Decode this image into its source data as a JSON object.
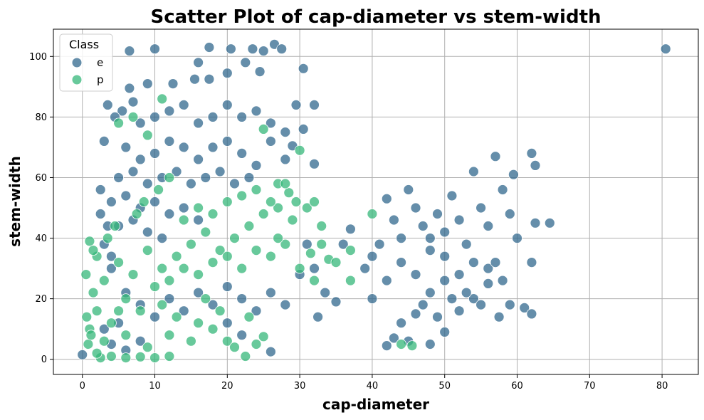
{
  "chart_data": {
    "type": "scatter",
    "title": "Scatter Plot of cap-diameter vs stem-width",
    "xlabel": "cap-diameter",
    "ylabel": "stem-width",
    "xlim": [
      -4,
      85
    ],
    "ylim": [
      -5,
      109
    ],
    "xticks": [
      0,
      10,
      20,
      30,
      40,
      50,
      60,
      70,
      80
    ],
    "yticks": [
      0,
      20,
      40,
      60,
      80,
      100
    ],
    "grid": true,
    "legend": {
      "title": "Class",
      "placement": "top-left"
    },
    "series": [
      {
        "name": "e",
        "color": "#31688e",
        "points": [
          [
            0.0,
            1.5
          ],
          [
            80.5,
            102.5
          ],
          [
            6.5,
            101.8
          ],
          [
            10.0,
            102.5
          ],
          [
            16.0,
            98.0
          ],
          [
            17.5,
            103.0
          ],
          [
            20.5,
            102.5
          ],
          [
            23.5,
            102.5
          ],
          [
            25.0,
            101.8
          ],
          [
            26.5,
            104.0
          ],
          [
            27.5,
            102.5
          ],
          [
            30.5,
            96.0
          ],
          [
            9.0,
            91.0
          ],
          [
            15.5,
            92.5
          ],
          [
            17.5,
            92.5
          ],
          [
            20.0,
            94.5
          ],
          [
            22.5,
            98.0
          ],
          [
            24.5,
            95.0
          ],
          [
            12.5,
            91.0
          ],
          [
            6.5,
            89.5
          ],
          [
            3.5,
            84.0
          ],
          [
            5.5,
            82.0
          ],
          [
            29.5,
            84.0
          ],
          [
            32.0,
            84.0
          ],
          [
            30.5,
            76.0
          ],
          [
            29.0,
            70.5
          ],
          [
            32.0,
            64.5
          ],
          [
            4.5,
            80.0
          ],
          [
            3.0,
            72.0
          ],
          [
            2.5,
            56.0
          ],
          [
            2.5,
            48.0
          ],
          [
            3.5,
            44.0
          ],
          [
            3.0,
            38.0
          ],
          [
            4.0,
            34.0
          ],
          [
            7.0,
            85.0
          ],
          [
            8.0,
            78.0
          ],
          [
            10.0,
            80.0
          ],
          [
            12.0,
            82.0
          ],
          [
            14.0,
            84.0
          ],
          [
            16.0,
            78.0
          ],
          [
            18.0,
            80.0
          ],
          [
            20.0,
            84.0
          ],
          [
            22.0,
            80.0
          ],
          [
            24.0,
            82.0
          ],
          [
            26.0,
            78.0
          ],
          [
            28.0,
            75.0
          ],
          [
            6.0,
            70.0
          ],
          [
            8.0,
            66.0
          ],
          [
            10.0,
            68.0
          ],
          [
            12.0,
            72.0
          ],
          [
            14.0,
            70.0
          ],
          [
            16.0,
            66.0
          ],
          [
            18.0,
            70.0
          ],
          [
            20.0,
            72.0
          ],
          [
            22.0,
            68.0
          ],
          [
            24.0,
            64.0
          ],
          [
            26.0,
            72.0
          ],
          [
            28.0,
            66.0
          ],
          [
            5.0,
            60.0
          ],
          [
            7.0,
            62.0
          ],
          [
            9.0,
            58.0
          ],
          [
            11.0,
            60.0
          ],
          [
            13.0,
            62.0
          ],
          [
            15.0,
            58.0
          ],
          [
            17.0,
            60.0
          ],
          [
            19.0,
            62.0
          ],
          [
            21.0,
            58.0
          ],
          [
            23.0,
            60.0
          ],
          [
            4.0,
            52.0
          ],
          [
            6.0,
            54.0
          ],
          [
            8.0,
            50.0
          ],
          [
            10.0,
            52.0
          ],
          [
            12.0,
            48.0
          ],
          [
            14.0,
            50.0
          ],
          [
            16.0,
            46.0
          ],
          [
            5.0,
            44.0
          ],
          [
            7.0,
            46.0
          ],
          [
            9.0,
            42.0
          ],
          [
            11.0,
            40.0
          ],
          [
            4.0,
            30.0
          ],
          [
            6.0,
            22.0
          ],
          [
            8.0,
            18.0
          ],
          [
            10.0,
            14.0
          ],
          [
            12.0,
            20.0
          ],
          [
            14.0,
            16.0
          ],
          [
            16.0,
            22.0
          ],
          [
            18.0,
            18.0
          ],
          [
            20.0,
            24.0
          ],
          [
            22.0,
            20.0
          ],
          [
            24.0,
            16.0
          ],
          [
            26.0,
            22.0
          ],
          [
            28.0,
            18.0
          ],
          [
            30.0,
            28.0
          ],
          [
            31.0,
            38.0
          ],
          [
            32.0,
            30.0
          ],
          [
            33.5,
            22.0
          ],
          [
            35.0,
            19.0
          ],
          [
            36.0,
            38.0
          ],
          [
            37.0,
            43.0
          ],
          [
            32.5,
            14.0
          ],
          [
            26.0,
            2.5
          ],
          [
            4.0,
            5.0
          ],
          [
            6.0,
            3.0
          ],
          [
            8.0,
            6.0
          ],
          [
            3.0,
            10.0
          ],
          [
            5.0,
            12.0
          ],
          [
            20.0,
            12.0
          ],
          [
            22.0,
            8.0
          ],
          [
            40.0,
            20.0
          ],
          [
            39.0,
            30.0
          ],
          [
            41.0,
            38.0
          ],
          [
            42.0,
            53.0
          ],
          [
            43.0,
            46.0
          ],
          [
            44.0,
            40.0
          ],
          [
            45.0,
            56.0
          ],
          [
            46.0,
            50.0
          ],
          [
            47.0,
            44.0
          ],
          [
            48.0,
            36.0
          ],
          [
            49.0,
            48.0
          ],
          [
            50.0,
            42.0
          ],
          [
            51.0,
            54.0
          ],
          [
            52.0,
            46.0
          ],
          [
            53.0,
            38.0
          ],
          [
            54.0,
            62.0
          ],
          [
            55.0,
            50.0
          ],
          [
            56.0,
            44.0
          ],
          [
            57.0,
            67.0
          ],
          [
            58.0,
            56.0
          ],
          [
            59.0,
            48.0
          ],
          [
            60.0,
            40.0
          ],
          [
            62.0,
            68.0
          ],
          [
            62.5,
            64.0
          ],
          [
            64.5,
            45.0
          ],
          [
            62.5,
            45.0
          ],
          [
            62.0,
            32.0
          ],
          [
            59.5,
            61.0
          ],
          [
            61.0,
            17.0
          ],
          [
            62.0,
            15.0
          ],
          [
            59.0,
            18.0
          ],
          [
            57.5,
            14.0
          ],
          [
            56.0,
            25.0
          ],
          [
            54.0,
            20.0
          ],
          [
            52.0,
            16.0
          ],
          [
            50.0,
            9.0
          ],
          [
            48.0,
            5.0
          ],
          [
            45.0,
            6.0
          ],
          [
            43.0,
            7.0
          ],
          [
            42.0,
            4.5
          ],
          [
            44.0,
            12.0
          ],
          [
            46.0,
            15.0
          ],
          [
            48.0,
            22.0
          ],
          [
            50.0,
            26.0
          ],
          [
            52.0,
            28.0
          ],
          [
            54.0,
            32.0
          ],
          [
            56.0,
            30.0
          ],
          [
            58.0,
            26.0
          ],
          [
            46.0,
            28.0
          ],
          [
            44.0,
            32.0
          ],
          [
            42.0,
            26.0
          ],
          [
            40.0,
            34.0
          ],
          [
            47.0,
            18.0
          ],
          [
            49.0,
            14.0
          ],
          [
            51.0,
            20.0
          ],
          [
            53.0,
            22.0
          ],
          [
            55.0,
            18.0
          ],
          [
            57.0,
            32.0
          ],
          [
            50.0,
            34.0
          ],
          [
            48.0,
            40.0
          ]
        ]
      },
      {
        "name": "p",
        "color": "#35b779",
        "points": [
          [
            11.0,
            86.0
          ],
          [
            7.0,
            80.0
          ],
          [
            5.0,
            78.0
          ],
          [
            9.0,
            74.0
          ],
          [
            12.0,
            60.0
          ],
          [
            30.0,
            69.0
          ],
          [
            27.0,
            58.0
          ],
          [
            28.5,
            55.0
          ],
          [
            29.5,
            52.0
          ],
          [
            31.0,
            50.0
          ],
          [
            32.0,
            52.0
          ],
          [
            33.0,
            44.0
          ],
          [
            31.5,
            35.0
          ],
          [
            30.0,
            30.0
          ],
          [
            32.0,
            26.0
          ],
          [
            34.0,
            33.0
          ],
          [
            35.0,
            32.0
          ],
          [
            37.0,
            36.0
          ],
          [
            37.0,
            26.0
          ],
          [
            40.0,
            48.0
          ],
          [
            45.5,
            4.5
          ],
          [
            44.0,
            5.0
          ],
          [
            1.0,
            39.0
          ],
          [
            0.5,
            28.0
          ],
          [
            1.5,
            22.0
          ],
          [
            2.0,
            16.0
          ],
          [
            1.0,
            10.0
          ],
          [
            2.5,
            0.5
          ],
          [
            4.0,
            1.0
          ],
          [
            6.0,
            0.5
          ],
          [
            8.0,
            0.8
          ],
          [
            10.0,
            0.5
          ],
          [
            12.0,
            1.0
          ],
          [
            3.0,
            26.0
          ],
          [
            5.0,
            32.0
          ],
          [
            7.0,
            28.0
          ],
          [
            9.0,
            36.0
          ],
          [
            11.0,
            30.0
          ],
          [
            13.0,
            34.0
          ],
          [
            15.0,
            38.0
          ],
          [
            17.0,
            42.0
          ],
          [
            19.0,
            36.0
          ],
          [
            21.0,
            40.0
          ],
          [
            23.0,
            44.0
          ],
          [
            25.0,
            48.0
          ],
          [
            27.0,
            50.0
          ],
          [
            29.0,
            46.0
          ],
          [
            14.0,
            46.0
          ],
          [
            16.0,
            50.0
          ],
          [
            18.0,
            48.0
          ],
          [
            20.0,
            52.0
          ],
          [
            22.0,
            54.0
          ],
          [
            24.0,
            56.0
          ],
          [
            26.0,
            52.0
          ],
          [
            28.0,
            58.0
          ],
          [
            10.0,
            24.0
          ],
          [
            12.0,
            26.0
          ],
          [
            14.0,
            30.0
          ],
          [
            16.0,
            28.0
          ],
          [
            18.0,
            32.0
          ],
          [
            20.0,
            34.0
          ],
          [
            22.0,
            30.0
          ],
          [
            24.0,
            36.0
          ],
          [
            26.0,
            34.0
          ],
          [
            28.0,
            38.0
          ],
          [
            6.0,
            20.0
          ],
          [
            8.0,
            16.0
          ],
          [
            4.0,
            12.0
          ],
          [
            3.0,
            6.0
          ],
          [
            6.0,
            8.0
          ],
          [
            9.0,
            4.0
          ],
          [
            12.0,
            8.0
          ],
          [
            15.0,
            6.0
          ],
          [
            18.0,
            10.0
          ],
          [
            20.0,
            6.0
          ],
          [
            21.0,
            4.0
          ],
          [
            22.5,
            1.0
          ],
          [
            24.0,
            5.0
          ],
          [
            25.0,
            7.5
          ],
          [
            23.0,
            14.0
          ],
          [
            2.0,
            34.0
          ],
          [
            1.5,
            36.0
          ],
          [
            3.5,
            40.0
          ],
          [
            4.5,
            44.0
          ],
          [
            7.5,
            48.0
          ],
          [
            8.5,
            52.0
          ],
          [
            10.5,
            56.0
          ],
          [
            25.0,
            76.0
          ],
          [
            27.0,
            40.0
          ],
          [
            33.0,
            38.0
          ],
          [
            13.0,
            14.0
          ],
          [
            16.0,
            12.0
          ],
          [
            11.0,
            18.0
          ],
          [
            19.0,
            16.0
          ],
          [
            17.0,
            20.0
          ],
          [
            5.0,
            16.0
          ],
          [
            2.0,
            2.0
          ],
          [
            0.8,
            5.0
          ],
          [
            1.2,
            8.0
          ],
          [
            0.6,
            14.0
          ]
        ]
      }
    ]
  }
}
